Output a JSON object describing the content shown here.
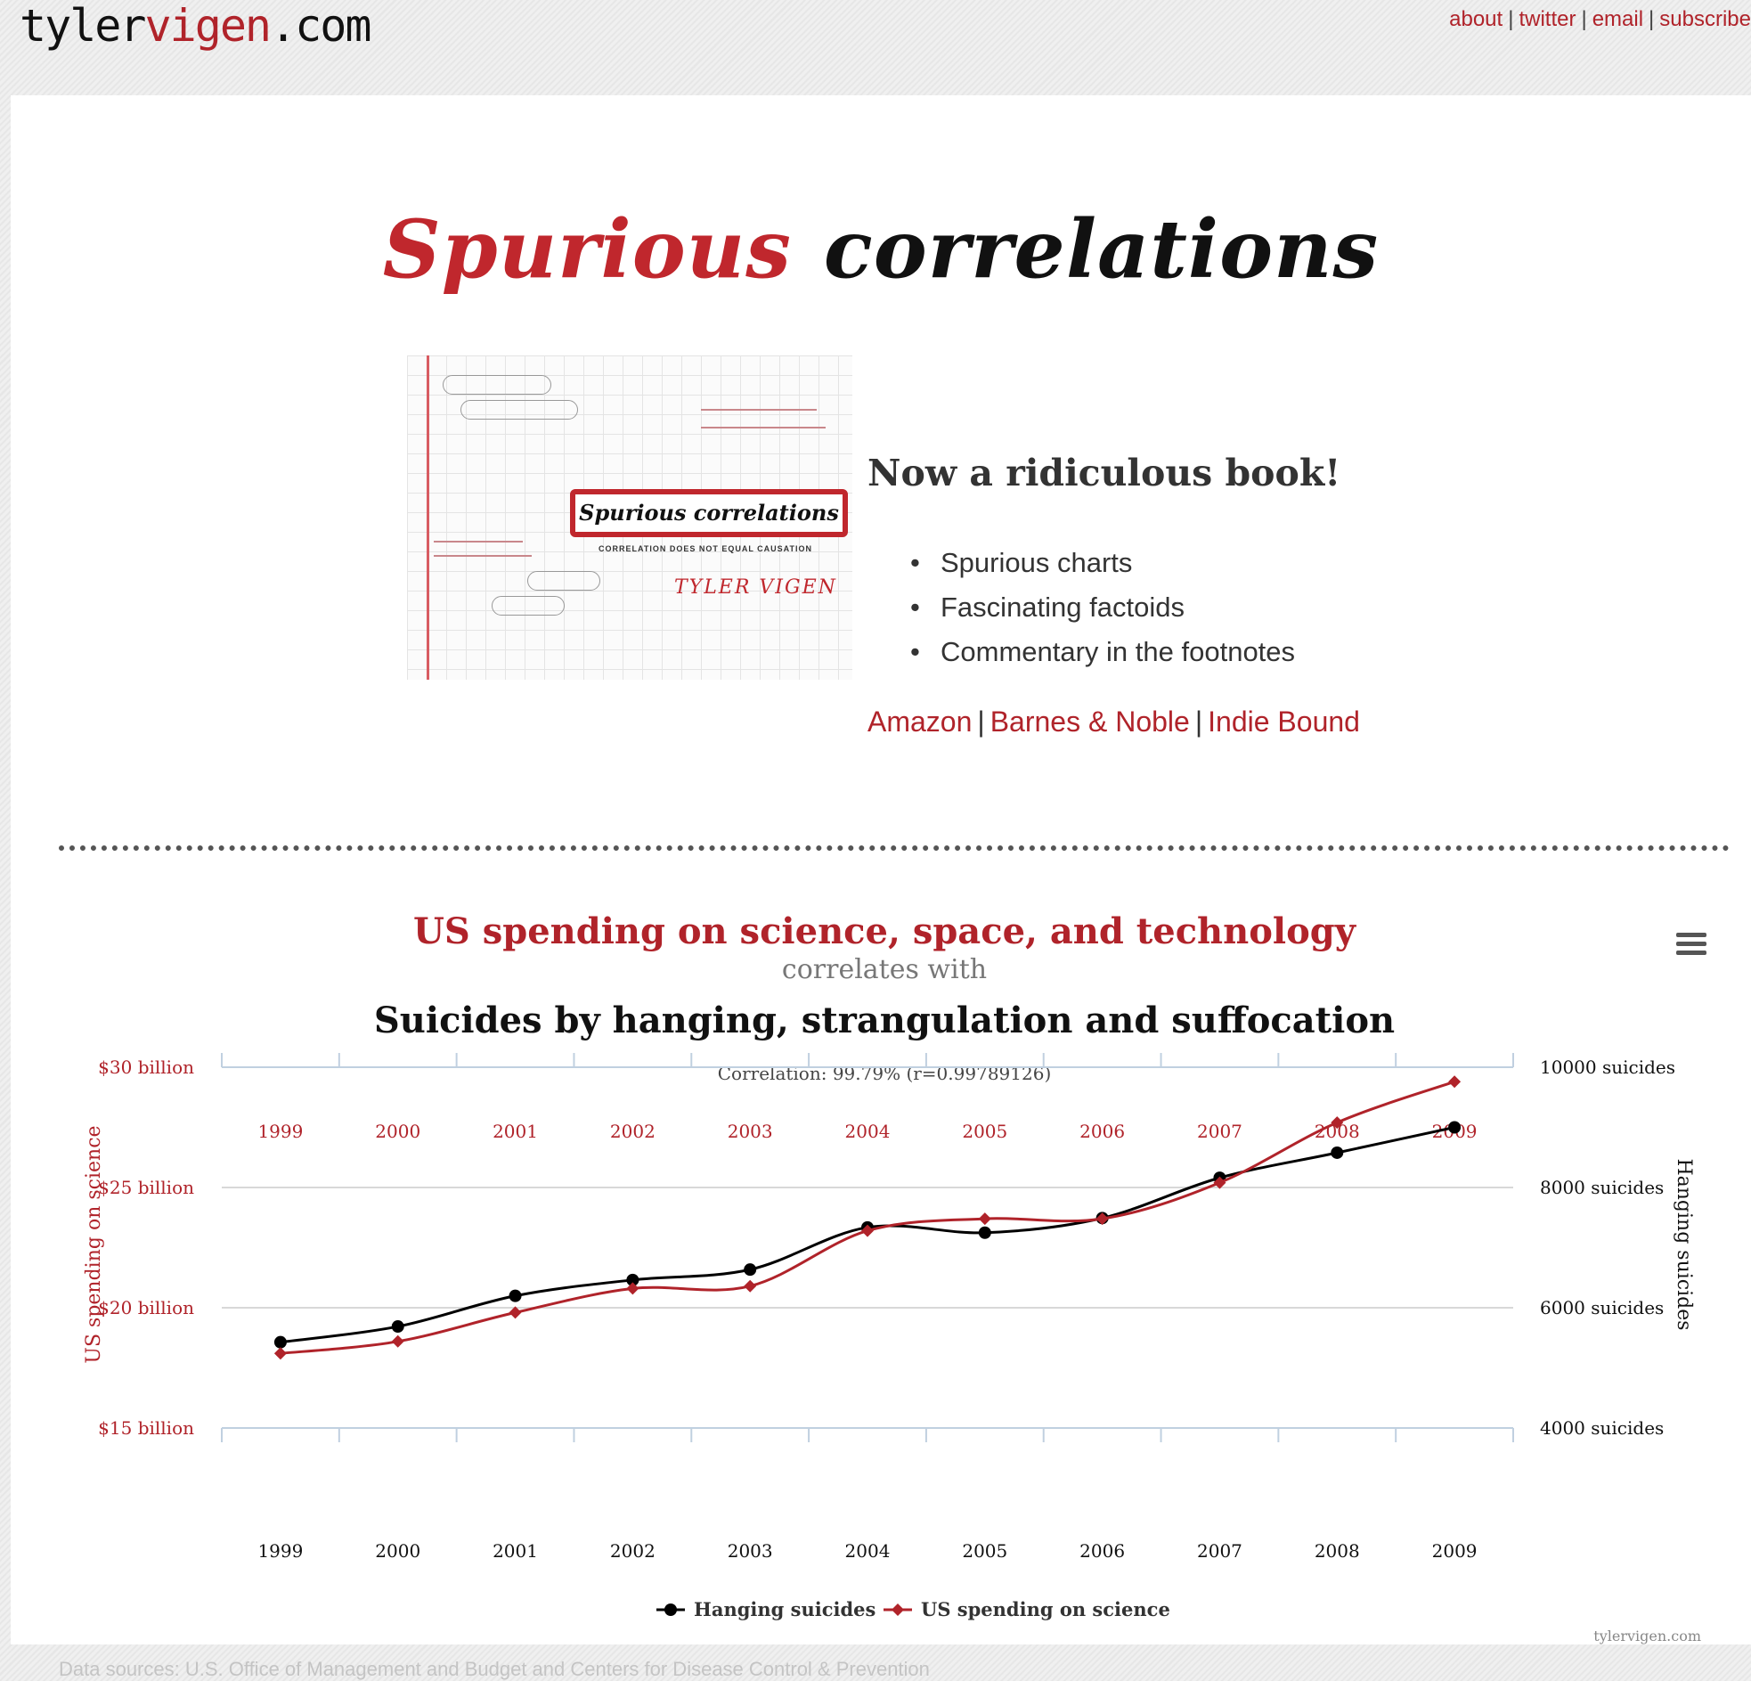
{
  "site": {
    "logo_prefix": "tyler",
    "logo_accent": "vigen",
    "logo_suffix": ".com",
    "nav": [
      {
        "label": "about"
      },
      {
        "label": "twitter"
      },
      {
        "label": "email"
      },
      {
        "label": "subscribe"
      }
    ],
    "separator": "|"
  },
  "hero": {
    "title_word1": "Spurious",
    "title_word2": "correlations"
  },
  "book": {
    "cover_title": "Spurious correlations",
    "cover_subtitle": "CORRELATION DOES NOT EQUAL CAUSATION",
    "cover_author": "TYLER VIGEN",
    "heading": "Now a ridiculous book!",
    "bullets": [
      "Spurious charts",
      "Fascinating factoids",
      "Commentary in the footnotes"
    ],
    "links": [
      {
        "label": "Amazon"
      },
      {
        "label": "Barnes & Noble"
      },
      {
        "label": "Indie Bound"
      }
    ],
    "separator": "|"
  },
  "chart_data": {
    "type": "line",
    "title": "US spending on science, space, and technology",
    "subtitle": "correlates with",
    "title2": "Suicides by hanging, strangulation and suffocation",
    "correlation_text": "Correlation: 99.79% (r=0.99789126)",
    "x": [
      1999,
      2000,
      2001,
      2002,
      2003,
      2004,
      2005,
      2006,
      2007,
      2008,
      2009
    ],
    "y_left": {
      "label": "US spending on science",
      "ticks": [
        "$15 billion",
        "$20 billion",
        "$25 billion",
        "$30 billion"
      ],
      "tick_values": [
        15,
        20,
        25,
        30
      ],
      "range": [
        15,
        30
      ],
      "color": "#b0232a"
    },
    "y_right": {
      "label": "Hanging suicides",
      "ticks": [
        "4000 suicides",
        "6000 suicides",
        "8000 suicides",
        "10000 suicides"
      ],
      "tick_values": [
        4000,
        6000,
        8000,
        10000
      ],
      "range": [
        4000,
        10000
      ],
      "color": "#111111"
    },
    "series": [
      {
        "name": "Hanging suicides",
        "axis": "right",
        "color": "#000000",
        "marker": "circle",
        "values": [
          5427,
          5688,
          6198,
          6462,
          6635,
          7336,
          7248,
          7491,
          8161,
          8578,
          9000
        ]
      },
      {
        "name": "US spending on science",
        "axis": "left",
        "color": "#b0232a",
        "marker": "diamond",
        "values": [
          18.1,
          18.6,
          19.8,
          20.8,
          20.9,
          23.2,
          23.7,
          23.7,
          25.2,
          27.7,
          29.4
        ]
      }
    ],
    "grid": true,
    "legend_position": "bottom",
    "credit": "tylervigen.com"
  },
  "footer": {
    "data_sources": "Data sources: U.S. Office of Management and Budget and Centers for Disease Control & Prevention"
  }
}
